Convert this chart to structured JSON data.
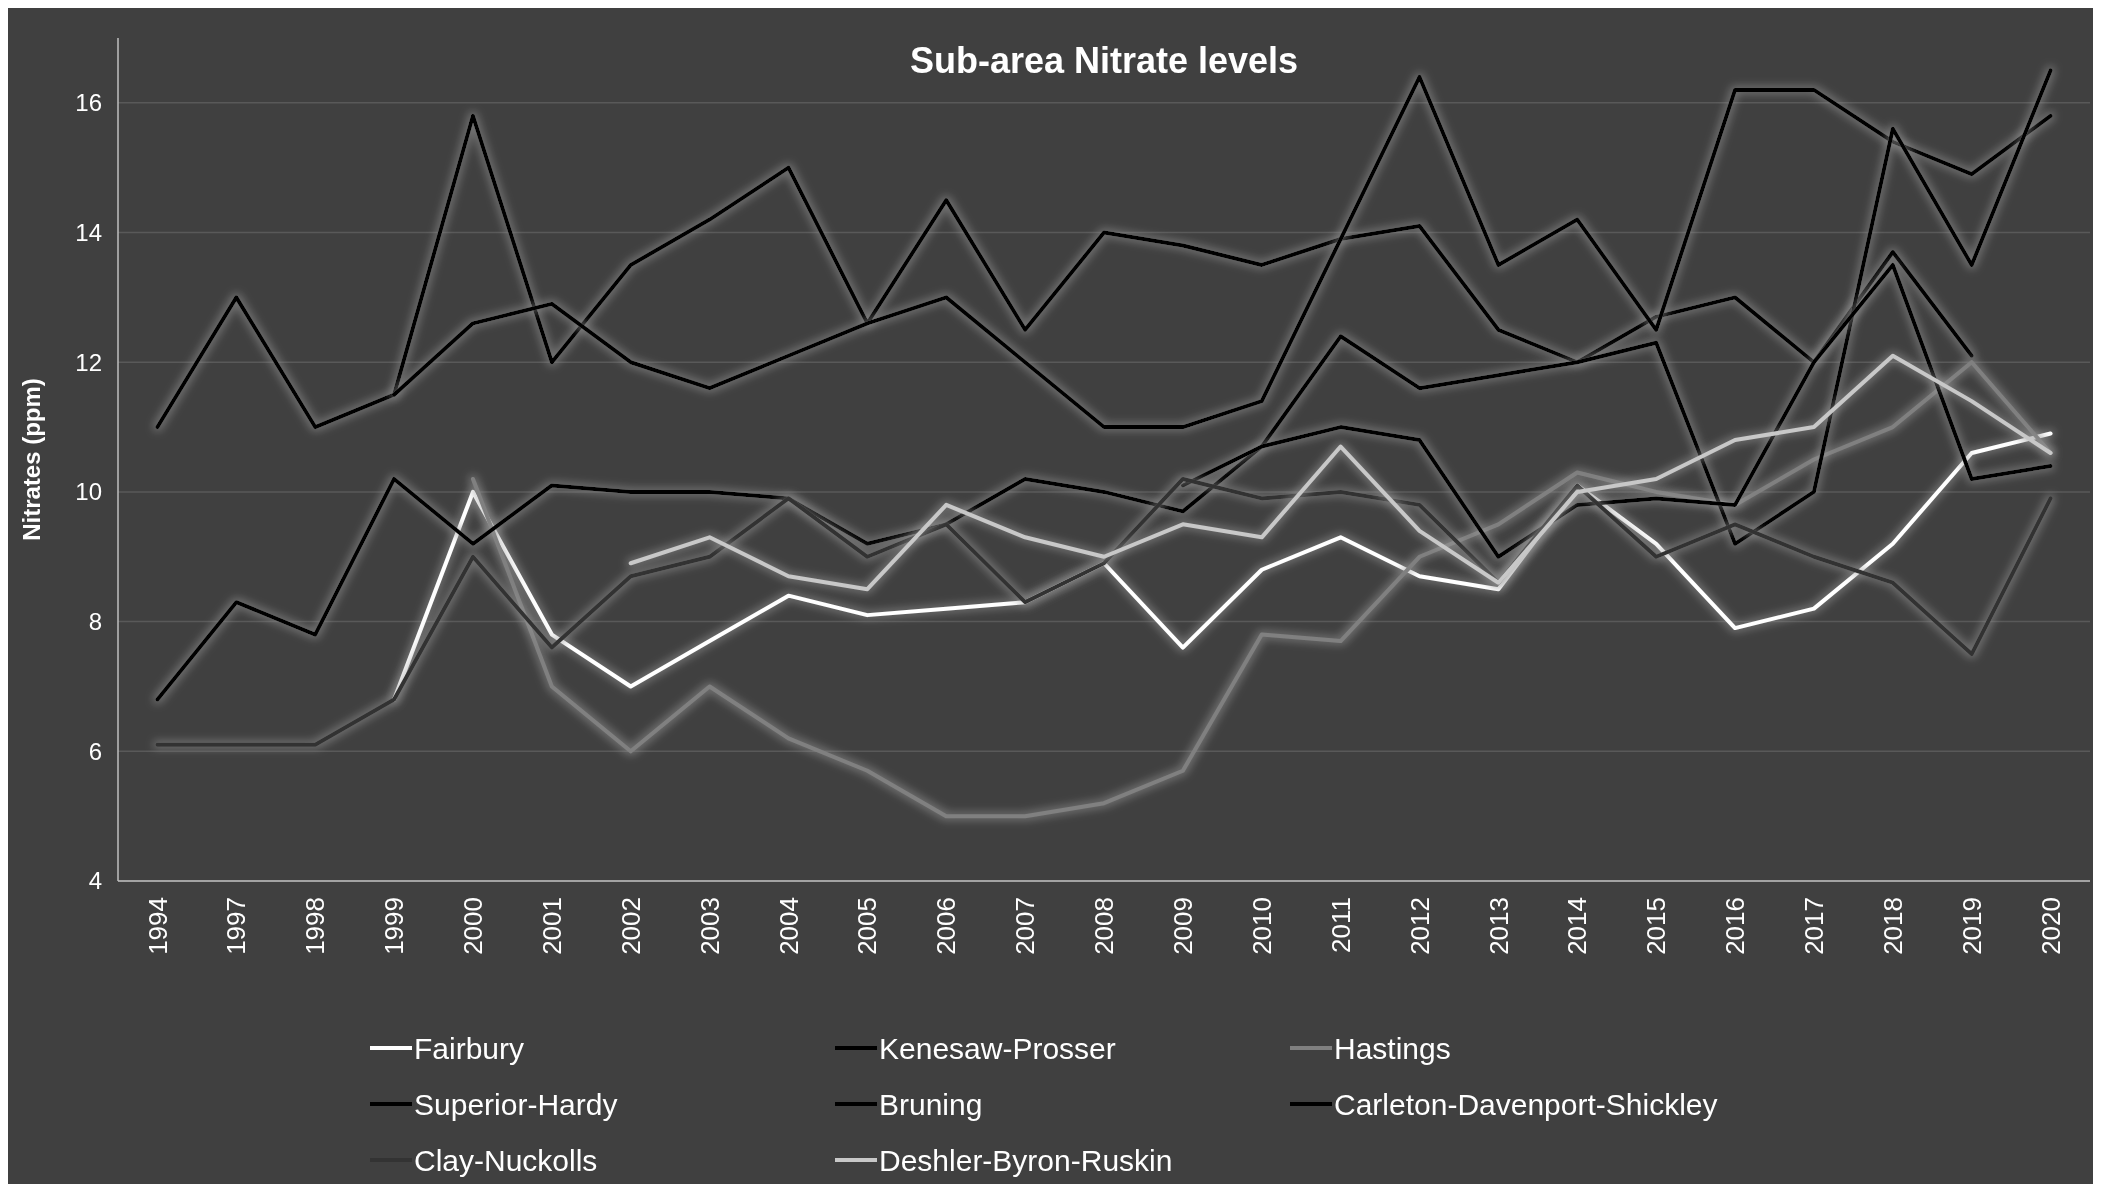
{
  "chart_data": {
    "type": "line",
    "title": "Sub-area Nitrate levels",
    "ylabel": "Nitrates (ppm)",
    "categories": [
      "1994",
      "1997",
      "1998",
      "1999",
      "2000",
      "2001",
      "2002",
      "2003",
      "2004",
      "2005",
      "2006",
      "2007",
      "2008",
      "2009",
      "2010",
      "2011",
      "2012",
      "2013",
      "2014",
      "2015",
      "2016",
      "2017",
      "2018",
      "2019",
      "2020"
    ],
    "ylim": [
      4,
      17
    ],
    "yticks": [
      4,
      6,
      8,
      10,
      12,
      14,
      16
    ],
    "grid": "y",
    "legend": "bottom",
    "line_style": "solid",
    "marker": "none",
    "series": [
      {
        "name": "Fairbury",
        "color": "#ffffff",
        "values": [
          null,
          null,
          null,
          6.8,
          10.0,
          7.8,
          7.0,
          7.7,
          8.4,
          8.1,
          8.2,
          8.3,
          8.9,
          7.6,
          8.8,
          9.3,
          8.7,
          8.5,
          10.1,
          9.2,
          7.9,
          8.2,
          9.2,
          10.6,
          10.9
        ]
      },
      {
        "name": "Kenesaw-Prosser",
        "color": "#000000",
        "values": [
          11.0,
          13.0,
          11.0,
          11.5,
          15.8,
          12.0,
          13.5,
          14.2,
          15.0,
          12.6,
          14.5,
          12.5,
          14.0,
          13.8,
          13.5,
          13.9,
          14.1,
          12.5,
          12.0,
          12.7,
          13.0,
          12.0,
          13.7,
          12.1,
          null
        ]
      },
      {
        "name": "Hastings",
        "color": "#808080",
        "values": [
          null,
          null,
          null,
          null,
          10.2,
          7.0,
          6.0,
          7.0,
          6.2,
          5.7,
          5.0,
          5.0,
          5.2,
          5.7,
          7.8,
          7.7,
          9.0,
          9.5,
          10.3,
          10.0,
          9.8,
          10.5,
          11.0,
          12.0,
          10.6
        ]
      },
      {
        "name": "Superior-Hardy",
        "color": "#000000",
        "values": [
          null,
          null,
          null,
          11.5,
          12.6,
          12.9,
          12.0,
          11.6,
          12.1,
          12.6,
          13.0,
          12.0,
          11.0,
          11.0,
          11.4,
          13.9,
          16.4,
          13.5,
          14.2,
          12.5,
          16.2,
          16.2,
          15.4,
          14.9,
          15.8
        ]
      },
      {
        "name": "Bruning",
        "color": "#000000",
        "values": [
          6.8,
          8.3,
          7.8,
          10.2,
          9.2,
          10.1,
          10.0,
          10.0,
          9.9,
          9.2,
          9.5,
          10.2,
          10.0,
          9.7,
          10.7,
          12.4,
          11.6,
          11.8,
          12.0,
          12.3,
          9.2,
          10.0,
          15.6,
          13.5,
          16.5
        ]
      },
      {
        "name": "Carleton-Davenport-Shickley",
        "color": "#000000",
        "values": [
          null,
          null,
          null,
          null,
          null,
          null,
          null,
          null,
          null,
          null,
          null,
          null,
          null,
          10.1,
          10.7,
          11.0,
          10.8,
          9.0,
          9.8,
          9.9,
          9.8,
          12.0,
          13.5,
          10.2,
          10.4
        ]
      },
      {
        "name": "Clay-Nuckolls",
        "color": "#333333",
        "values": [
          6.1,
          6.1,
          6.1,
          6.8,
          9.0,
          7.6,
          8.7,
          9.0,
          9.9,
          9.0,
          9.5,
          8.3,
          8.9,
          10.2,
          9.9,
          10.0,
          9.8,
          8.6,
          10.1,
          9.0,
          9.5,
          9.0,
          8.6,
          7.5,
          9.9
        ]
      },
      {
        "name": "Deshler-Byron-Ruskin",
        "color": "#c8c8c8",
        "values": [
          null,
          null,
          null,
          null,
          null,
          null,
          8.9,
          9.3,
          8.7,
          8.5,
          9.8,
          9.3,
          9.0,
          9.5,
          9.3,
          10.7,
          9.4,
          8.6,
          10.0,
          10.2,
          10.8,
          11.0,
          12.1,
          11.4,
          10.6
        ]
      }
    ]
  }
}
